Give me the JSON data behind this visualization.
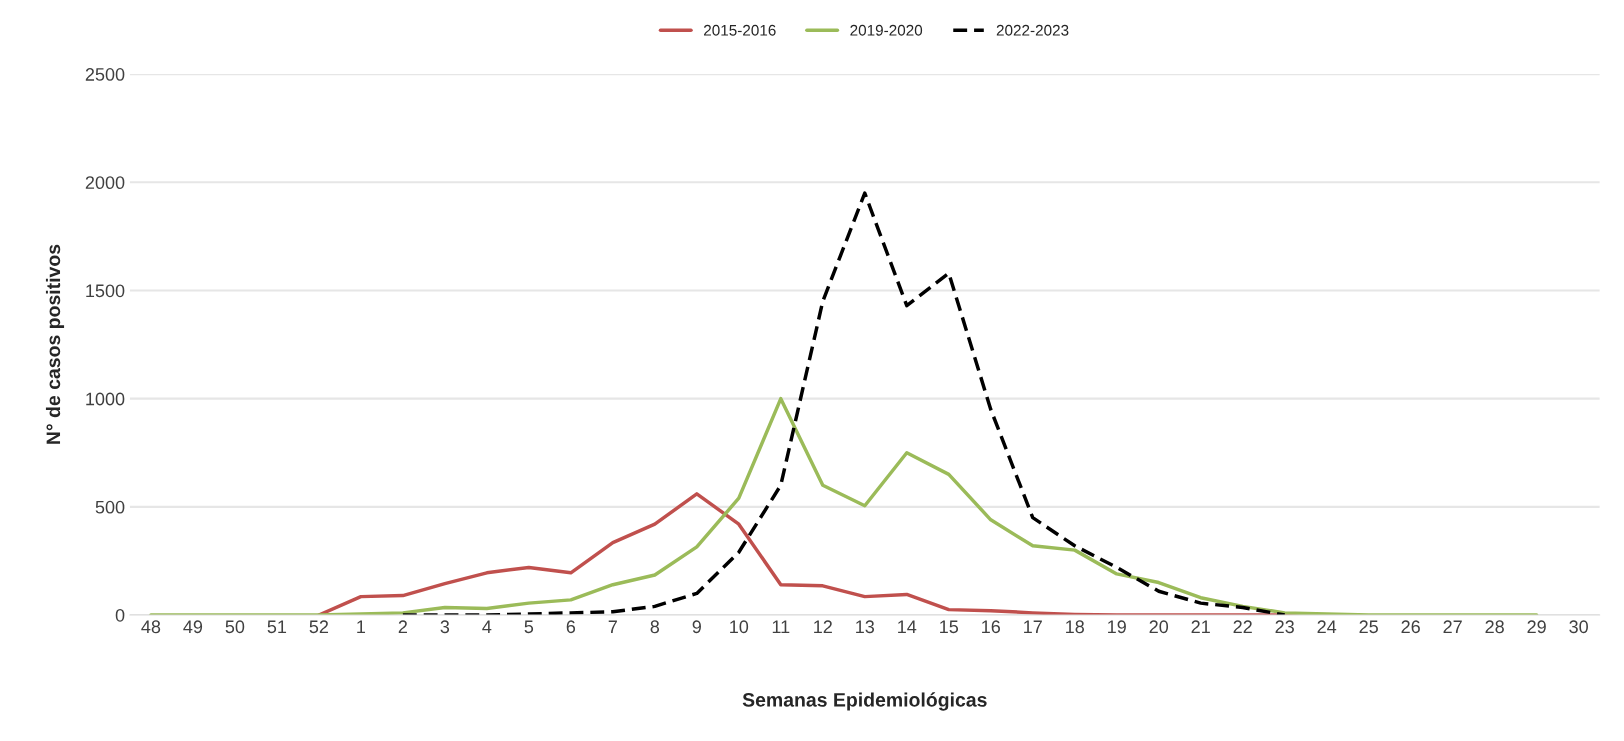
{
  "chart_data": {
    "type": "line",
    "xlabel": "Semanas Epidemiológicas",
    "ylabel": "N° de casos positivos",
    "categories": [
      "48",
      "49",
      "50",
      "51",
      "52",
      "1",
      "2",
      "3",
      "4",
      "5",
      "6",
      "7",
      "8",
      "9",
      "10",
      "11",
      "12",
      "13",
      "14",
      "15",
      "16",
      "17",
      "18",
      "19",
      "20",
      "21",
      "22",
      "23",
      "24",
      "25",
      "26",
      "27",
      "28",
      "29",
      "30"
    ],
    "series": [
      {
        "name": "2015-2016",
        "color": "#c0504d",
        "line_style": "solid",
        "values": [
          null,
          null,
          null,
          null,
          0,
          85,
          90,
          145,
          195,
          220,
          195,
          335,
          420,
          560,
          420,
          140,
          135,
          85,
          95,
          25,
          20,
          10,
          3,
          0,
          0,
          0,
          0,
          0,
          0,
          null,
          null,
          null,
          null,
          null,
          null
        ]
      },
      {
        "name": "2019-2020",
        "color": "#9bbb59",
        "line_style": "solid",
        "values": [
          0,
          0,
          0,
          0,
          0,
          5,
          10,
          35,
          30,
          55,
          70,
          140,
          185,
          315,
          540,
          1000,
          600,
          505,
          750,
          650,
          440,
          320,
          300,
          190,
          150,
          80,
          40,
          10,
          5,
          0,
          0,
          0,
          0,
          0,
          null
        ]
      },
      {
        "name": "2022-2023",
        "color": "#000000",
        "line_style": "dashed",
        "values": [
          null,
          null,
          null,
          null,
          null,
          null,
          0,
          0,
          0,
          5,
          10,
          15,
          40,
          100,
          290,
          600,
          1450,
          1950,
          1430,
          1580,
          950,
          450,
          320,
          220,
          110,
          55,
          35,
          0,
          null,
          null,
          null,
          null,
          null,
          null,
          null
        ]
      }
    ],
    "ylim": [
      0,
      2500
    ],
    "yticks": [
      0,
      500,
      1000,
      1500,
      2000,
      2500
    ],
    "grid": "y",
    "legend": "top"
  }
}
